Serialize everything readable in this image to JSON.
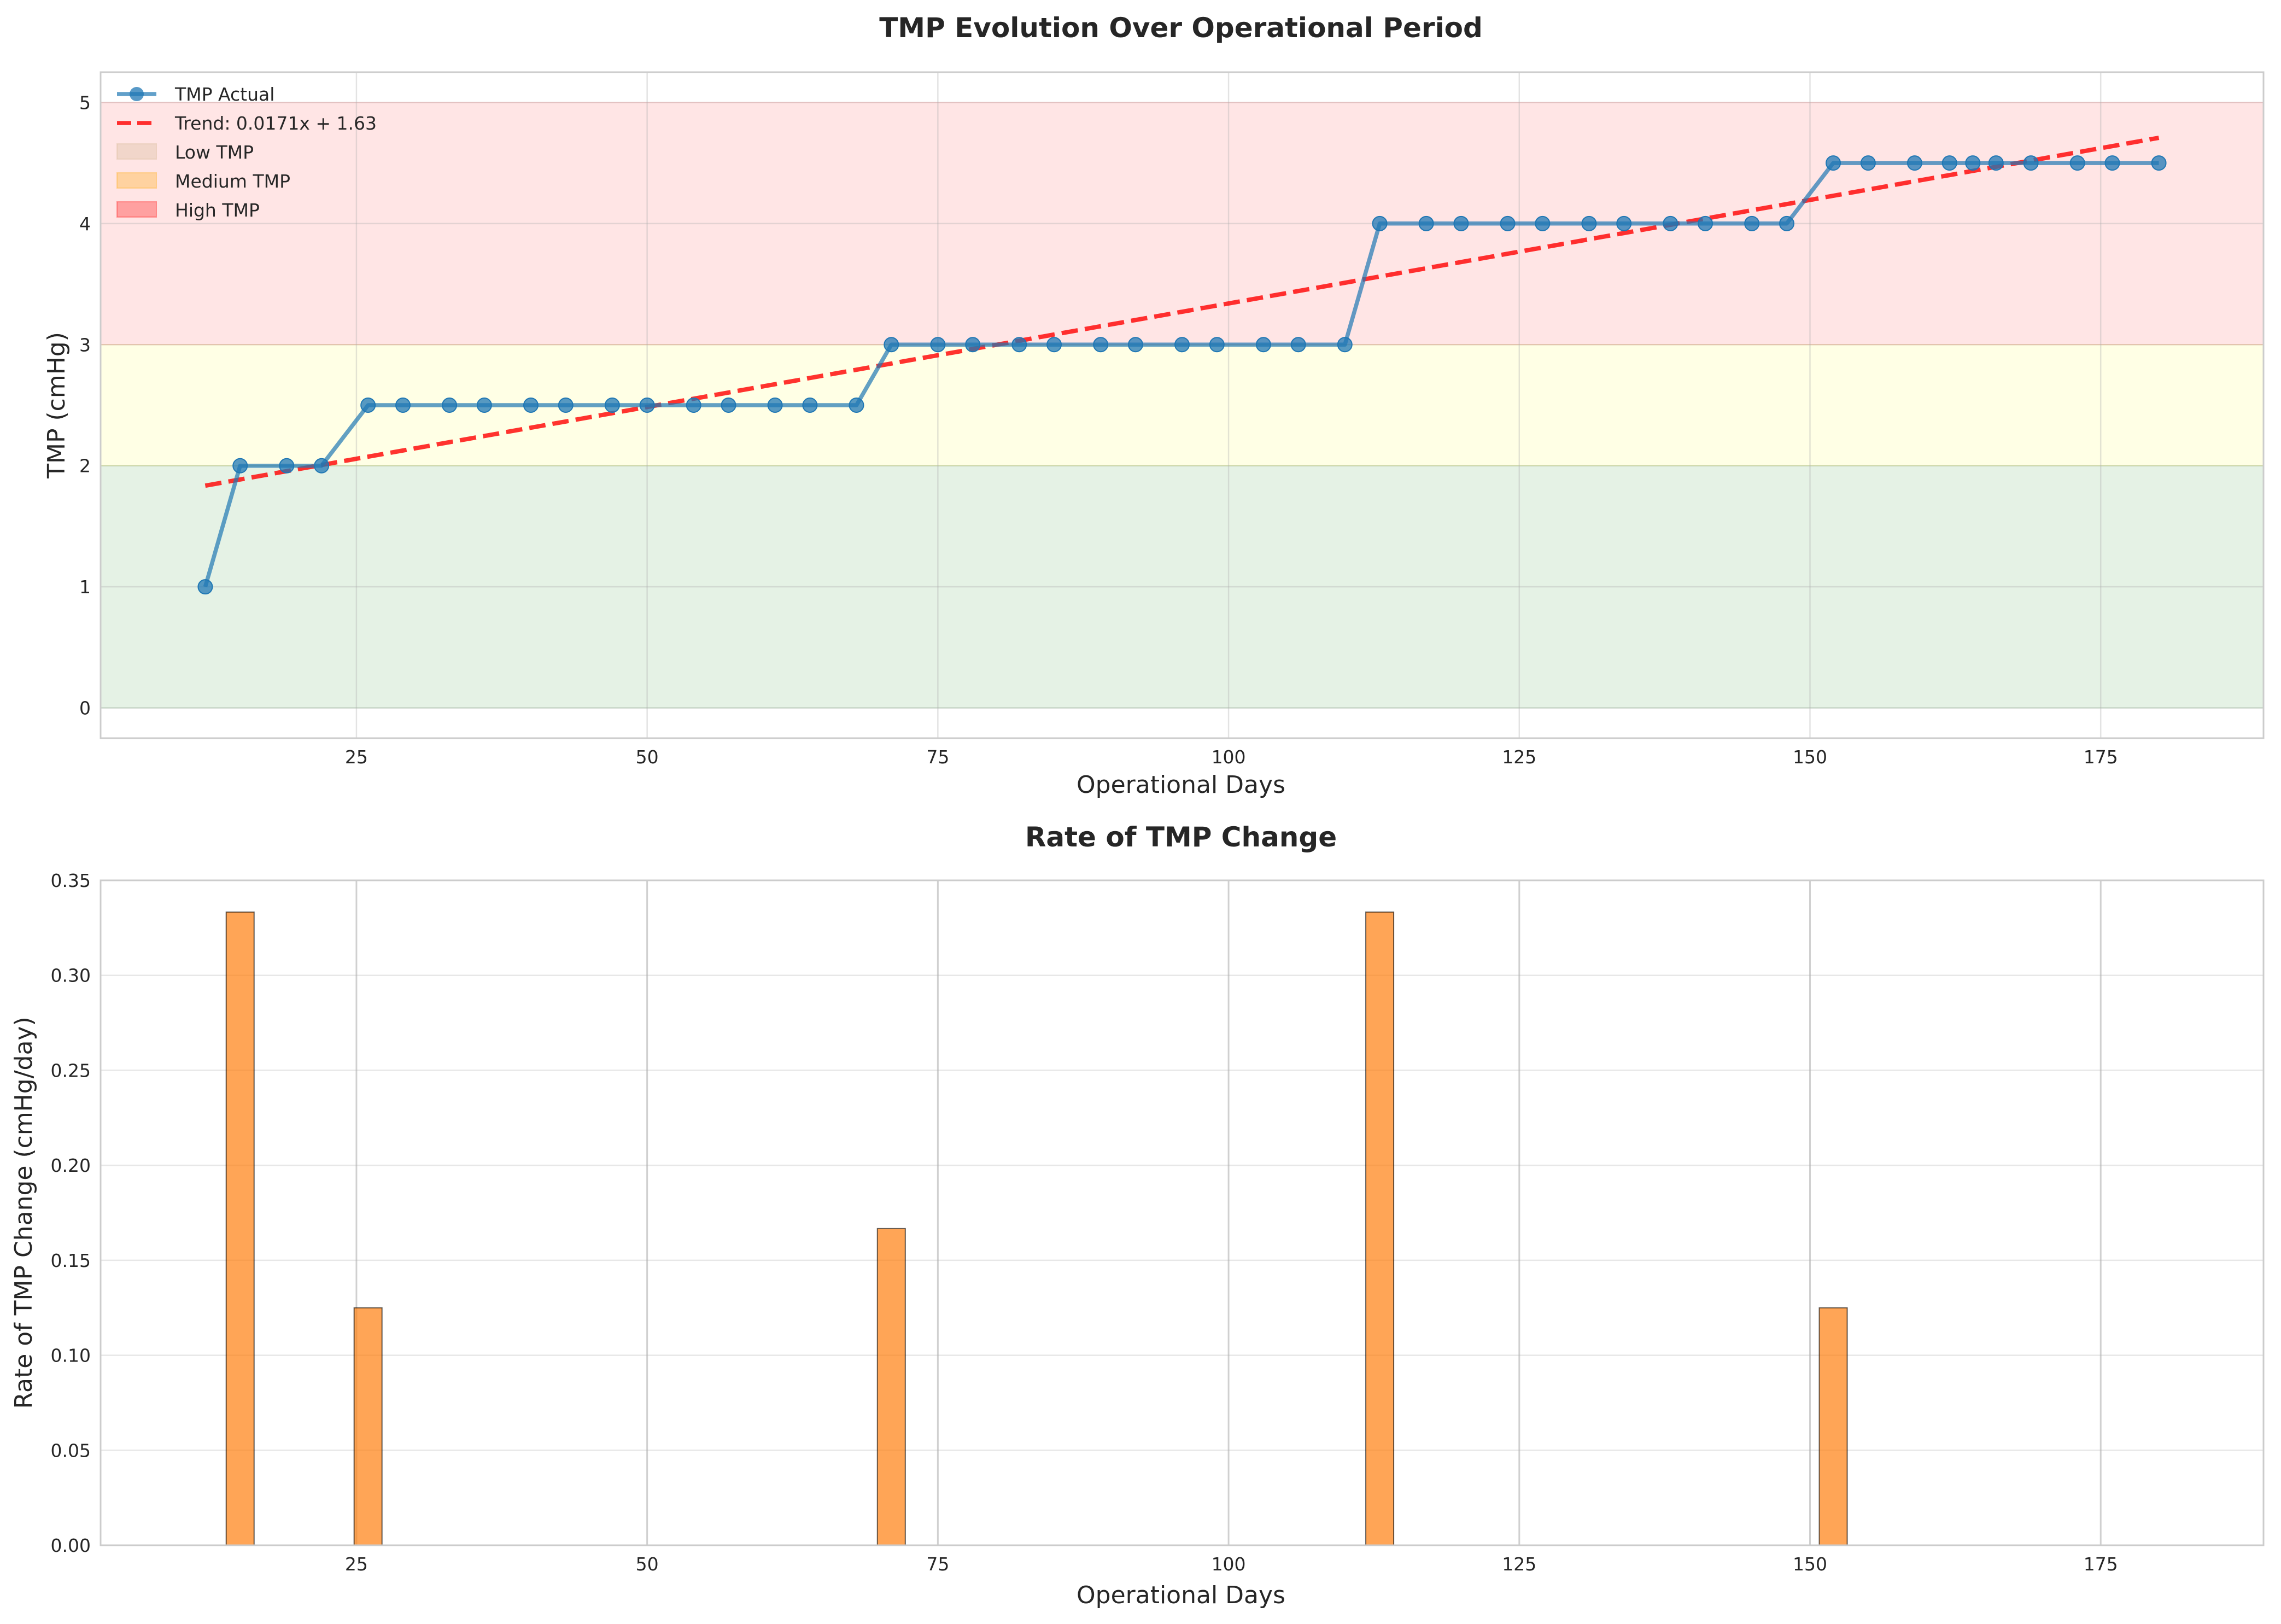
{
  "chart_data": [
    {
      "type": "line",
      "title": "TMP Evolution Over Operational Period",
      "xlabel": "Operational Days",
      "ylabel": "TMP (cmHg)",
      "xlim": [
        3,
        189
      ],
      "ylim": [
        -0.25,
        5.25
      ],
      "xticks": [
        25,
        50,
        75,
        100,
        125,
        150,
        175
      ],
      "yticks": [
        0,
        1,
        2,
        3,
        4,
        5
      ],
      "grid": true,
      "legend_position": "top-left",
      "bands": [
        {
          "name": "Low TMP",
          "y0": 0,
          "y1": 2,
          "color": "#008000",
          "legend_color": "#d2b48c"
        },
        {
          "name": "Medium TMP",
          "y0": 2,
          "y1": 3,
          "color": "#ffff00",
          "legend_color": "#ffa500"
        },
        {
          "name": "High TMP",
          "y0": 3,
          "y1": 5,
          "color": "#ff0000",
          "legend_color": "#ff0000"
        }
      ],
      "series": [
        {
          "name": "TMP Actual",
          "color": "#1f77b4",
          "x": [
            12,
            15,
            19,
            22,
            26,
            29,
            33,
            36,
            40,
            43,
            47,
            50,
            54,
            57,
            61,
            64,
            68,
            71,
            75,
            78,
            82,
            85,
            89,
            92,
            96,
            99,
            103,
            106,
            110,
            113,
            117,
            120,
            124,
            127,
            131,
            134,
            138,
            141,
            145,
            148,
            152,
            155,
            159,
            162,
            164,
            166,
            169,
            173,
            176,
            180
          ],
          "y": [
            1,
            2,
            2,
            2,
            2.5,
            2.5,
            2.5,
            2.5,
            2.5,
            2.5,
            2.5,
            2.5,
            2.5,
            2.5,
            2.5,
            2.5,
            2.5,
            3,
            3,
            3,
            3,
            3,
            3,
            3,
            3,
            3,
            3,
            3,
            3,
            4,
            4,
            4,
            4,
            4,
            4,
            4,
            4,
            4,
            4,
            4,
            4.5,
            4.5,
            4.5,
            4.5,
            4.5,
            4.5,
            4.5,
            4.5,
            4.5,
            4.5
          ]
        }
      ],
      "trend": {
        "name": "Trend: 0.0171x + 1.63",
        "slope": 0.0171,
        "intercept": 1.63,
        "x_range": [
          12,
          180
        ],
        "color": "#ff0000"
      }
    },
    {
      "type": "bar",
      "title": "Rate of TMP Change",
      "xlabel": "Operational Days",
      "ylabel": "Rate of TMP Change (cmHg/day)",
      "xlim": [
        3,
        189
      ],
      "ylim": [
        0,
        0.35
      ],
      "xticks": [
        25,
        50,
        75,
        100,
        125,
        150,
        175
      ],
      "yticks": [
        0.0,
        0.05,
        0.1,
        0.15,
        0.2,
        0.25,
        0.3,
        0.35
      ],
      "ytick_labels": [
        "0.00",
        "0.05",
        "0.10",
        "0.15",
        "0.20",
        "0.25",
        "0.30",
        "0.35"
      ],
      "grid": true,
      "bar_color": "#ff7f0e",
      "bar_width_days": 2.4,
      "x": [
        15,
        26,
        71,
        113,
        152
      ],
      "values": [
        0.3333,
        0.125,
        0.1667,
        0.3333,
        0.125
      ]
    }
  ]
}
